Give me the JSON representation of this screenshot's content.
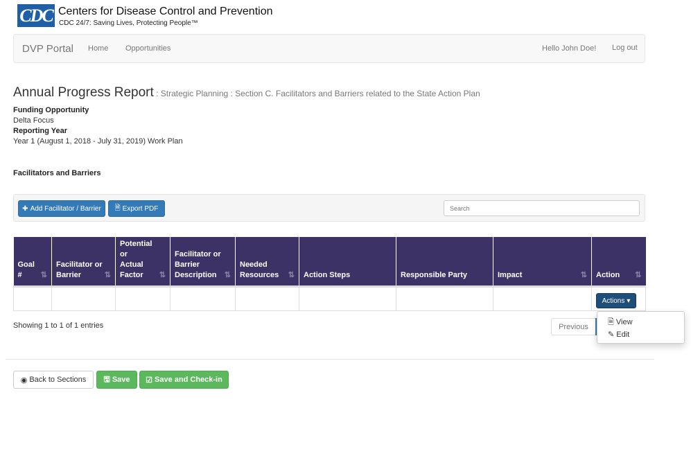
{
  "header": {
    "logo": "CDC",
    "org": "Centers for Disease Control and Prevention",
    "tagline": "CDC 24/7: Saving Lives, Protecting People™"
  },
  "nav": {
    "brand": "DVP Portal",
    "links": [
      "Home",
      "Opportunities"
    ],
    "greeting": "Hello John Doe!",
    "logout": "Log out"
  },
  "page": {
    "title": "Annual Progress Report",
    "subtitle": " : Strategic Planning : Section C. Facilitators and Barriers related to the State Action Plan",
    "funding_label": "Funding Opportunity",
    "funding_value": "Delta Focus",
    "year_label": "Reporting Year",
    "year_value": "Year 1 (August 1, 2018 - July 31, 2019) Work Plan",
    "section": "Facilitators and Barriers"
  },
  "toolbar": {
    "add": "Add Facilitator / Barrier",
    "export": "Export PDF",
    "search_placeholder": "Search"
  },
  "table": {
    "columns": [
      "Goal #",
      "Facilitator or Barrier",
      "Potential or Actual Factor",
      "Facilitator or Barrier Description",
      "Needed Resources",
      "Action Steps",
      "Responsible Party",
      "Impact",
      "Action"
    ],
    "header_color": "#3c3266",
    "actions_button": "Actions",
    "menu": [
      "View",
      "Edit"
    ]
  },
  "footer": {
    "info": "Showing 1 to 1 of 1 entries",
    "previous": "Previous",
    "back": "Back to Sections",
    "save": "Save",
    "checkin": "Save and Check-in"
  }
}
